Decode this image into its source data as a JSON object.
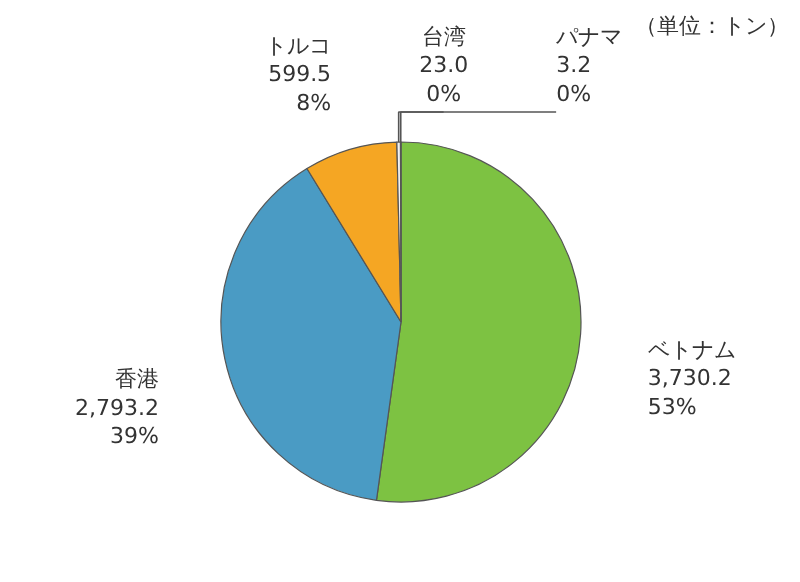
{
  "chart_data": {
    "type": "pie",
    "categories": [
      "ベトナム",
      "香港",
      "トルコ",
      "台湾",
      "パナマ"
    ],
    "values": [
      3730.2,
      2793.2,
      599.5,
      23.0,
      3.2
    ],
    "colors": [
      "#7dc242",
      "#4a9bc4",
      "#f5a623",
      "#f2f2f2",
      "#d9d9d9"
    ],
    "value_labels": [
      "3,730.2\n53%",
      "2,793.2\n39%",
      "599.5\n8%",
      "23.0\n0%",
      "3.2\n0%"
    ],
    "annotations": [
      "（単位：トン）"
    ]
  }
}
